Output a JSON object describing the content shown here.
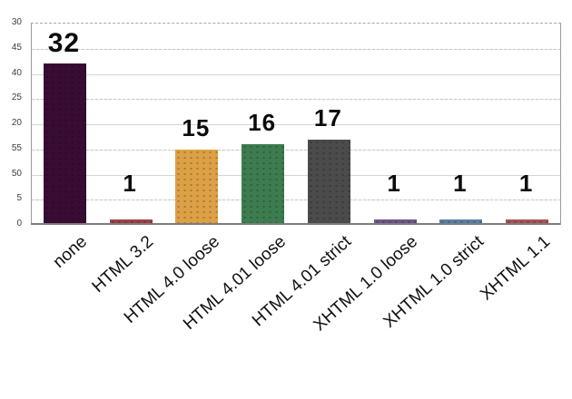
{
  "chart_data": {
    "type": "bar",
    "title": "",
    "xlabel": "",
    "ylabel": "",
    "categories": [
      "none",
      "HTML 3.2",
      "HTML 4.0 loose",
      "HTML 4.01 loose",
      "HTML 4.01 strict",
      "XHTML 1.0 loose",
      "XHTML 1.0 strict",
      "XHTML 1.1"
    ],
    "values": [
      32,
      1,
      15,
      16,
      17,
      1,
      1,
      1
    ],
    "bar_value_labels": [
      "32",
      "1",
      "15",
      "16",
      "17",
      "1",
      "1",
      "1"
    ],
    "bar_colors": [
      "#390c34",
      "#9e4243",
      "#dda045",
      "#3d7c4e",
      "#4b4b4b",
      "#6f5685",
      "#597ea4",
      "#a95252"
    ],
    "y_axis": {
      "tick_labels_top_to_bottom": [
        "30",
        "45",
        "40",
        "25",
        "20",
        "55",
        "50",
        "5",
        "0"
      ],
      "ylim": [
        0,
        40
      ],
      "tick_step": 5,
      "grid": true
    },
    "legend_position": "none",
    "background_color": "#ffffff",
    "gridline_color": "#d4d4d4",
    "axis_color": "#7d7d7d",
    "label_text_color": "#0b0b0b",
    "tick_text_color": "#3c3c3c"
  }
}
